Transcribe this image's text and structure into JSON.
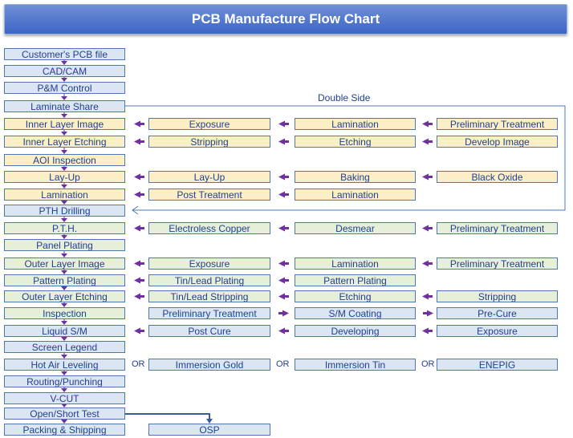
{
  "title": "PCB Manufacture Flow Chart",
  "double_side_label": "Double Side",
  "or_label": "OR",
  "rows": [
    {
      "cells": [
        {
          "text": "Customer's PCB file",
          "color": "blue"
        }
      ]
    },
    {
      "cells": [
        {
          "text": "CAD/CAM",
          "color": "blue"
        }
      ]
    },
    {
      "cells": [
        {
          "text": "P&M Control",
          "color": "blue"
        }
      ]
    },
    {
      "cells": [
        {
          "text": "Laminate Share",
          "color": "blue"
        }
      ]
    },
    {
      "cells": [
        {
          "text": "Inner Layer Image",
          "color": "yellow"
        },
        {
          "text": "Exposure",
          "color": "yellow"
        },
        {
          "text": "Lamination",
          "color": "yellow"
        },
        {
          "text": "Preliminary Treatment",
          "color": "yellow"
        }
      ]
    },
    {
      "cells": [
        {
          "text": "Inner Layer Etching",
          "color": "yellow"
        },
        {
          "text": "Stripping",
          "color": "yellow"
        },
        {
          "text": "Etching",
          "color": "yellow"
        },
        {
          "text": "Develop Image",
          "color": "yellow"
        }
      ]
    },
    {
      "cells": [
        {
          "text": "AOI Inspection",
          "color": "yellow"
        }
      ]
    },
    {
      "cells": [
        {
          "text": "Lay-Up",
          "color": "yellow"
        },
        {
          "text": "Lay-Up",
          "color": "yellow"
        },
        {
          "text": "Baking",
          "color": "yellow"
        },
        {
          "text": "Black Oxide",
          "color": "yellow"
        }
      ]
    },
    {
      "cells": [
        {
          "text": "Lamination",
          "color": "yellow"
        },
        {
          "text": "Post Treatment",
          "color": "yellow"
        },
        {
          "text": "Lamination",
          "color": "yellow"
        }
      ]
    },
    {
      "cells": [
        {
          "text": "PTH Drilling",
          "color": "blue"
        }
      ]
    },
    {
      "cells": [
        {
          "text": "P.T.H.",
          "color": "green"
        },
        {
          "text": "Electroless Copper",
          "color": "green"
        },
        {
          "text": "Desmear",
          "color": "green"
        },
        {
          "text": "Preliminary Treatment",
          "color": "green"
        }
      ]
    },
    {
      "cells": [
        {
          "text": "Panel Plating",
          "color": "green"
        }
      ]
    },
    {
      "cells": [
        {
          "text": "Outer Layer Image",
          "color": "green"
        },
        {
          "text": "Exposure",
          "color": "green"
        },
        {
          "text": "Lamination",
          "color": "green"
        },
        {
          "text": "Preliminary Treatment",
          "color": "green"
        }
      ]
    },
    {
      "cells": [
        {
          "text": "Pattern Plating",
          "color": "green"
        },
        {
          "text": "Tin/Lead Plating",
          "color": "green"
        },
        {
          "text": "Pattern Plating",
          "color": "green"
        }
      ]
    },
    {
      "cells": [
        {
          "text": "Outer Layer Etching",
          "color": "green"
        },
        {
          "text": "Tin/Lead Stripping",
          "color": "green"
        },
        {
          "text": "Etching",
          "color": "green"
        },
        {
          "text": "Stripping",
          "color": "green"
        }
      ]
    },
    {
      "cells": [
        {
          "text": "Inspection",
          "color": "green"
        },
        {
          "text": "Preliminary Treatment",
          "color": "blue"
        },
        {
          "text": "S/M Coating",
          "color": "blue"
        },
        {
          "text": "Pre-Cure",
          "color": "blue"
        }
      ]
    },
    {
      "cells": [
        {
          "text": "Liquid S/M",
          "color": "blue"
        },
        {
          "text": "Post Cure",
          "color": "blue"
        },
        {
          "text": "Developing",
          "color": "blue"
        },
        {
          "text": "Exposure",
          "color": "blue"
        }
      ]
    },
    {
      "cells": [
        {
          "text": "Screen Legend",
          "color": "blue"
        }
      ]
    },
    {
      "cells": [
        {
          "text": "Hot Air Leveling",
          "color": "blue"
        },
        {
          "text": "Immersion Gold",
          "color": "blue"
        },
        {
          "text": "Immersion Tin",
          "color": "blue"
        },
        {
          "text": "ENEPIG",
          "color": "blue"
        }
      ]
    },
    {
      "cells": [
        {
          "text": "Routing/Punching",
          "color": "blue"
        }
      ]
    },
    {
      "cells": [
        {
          "text": "V-CUT",
          "color": "blue"
        }
      ]
    },
    {
      "cells": [
        {
          "text": "Open/Short Test",
          "color": "blue"
        }
      ]
    },
    {
      "cells": [
        {
          "text": "Packing & Shipping",
          "color": "blue"
        },
        {
          "text": "OSP",
          "color": "blue"
        }
      ]
    }
  ],
  "colors": {
    "yellow": "#fcefc8",
    "green": "#e6f0d9",
    "blue": "#dce6f2",
    "border": "#4d78b5",
    "text": "#23408f",
    "arrow": "#7030a0",
    "title_bg": "#4a72c9",
    "title_text": "#ffffff"
  }
}
